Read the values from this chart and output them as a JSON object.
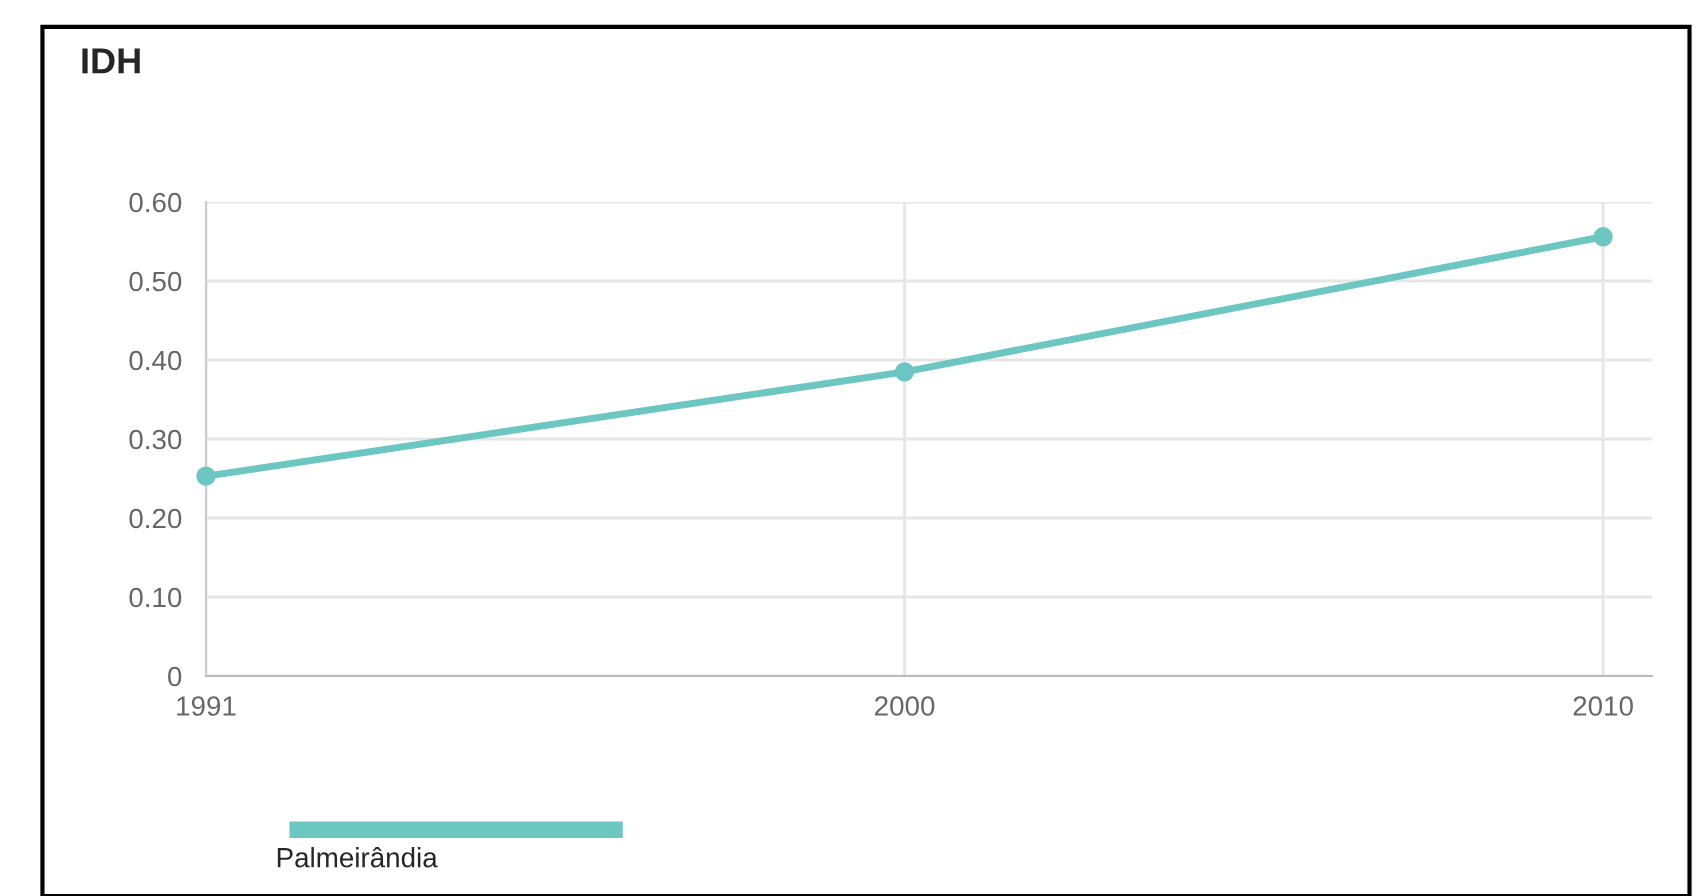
{
  "chart_data": {
    "type": "line",
    "title": "IDH",
    "categories": [
      "1991",
      "2000",
      "2010"
    ],
    "series": [
      {
        "name": "Palmeirândia",
        "color": "#6cc7c3",
        "values": [
          0.253,
          0.385,
          0.556
        ]
      }
    ],
    "ylim": [
      0,
      0.6
    ],
    "yticks": [
      0,
      {
        "value": 0.1,
        "label": "0.10"
      },
      {
        "value": 0.2,
        "label": "0.20"
      },
      {
        "value": 0.3,
        "label": "0.30"
      },
      {
        "value": 0.4,
        "label": "0.40"
      },
      {
        "value": 0.5,
        "label": "0.50"
      },
      {
        "value": 0.6,
        "label": "0.60"
      }
    ],
    "grid": true,
    "legend": "bottom left",
    "marker": "circle",
    "line_style": "solid"
  }
}
